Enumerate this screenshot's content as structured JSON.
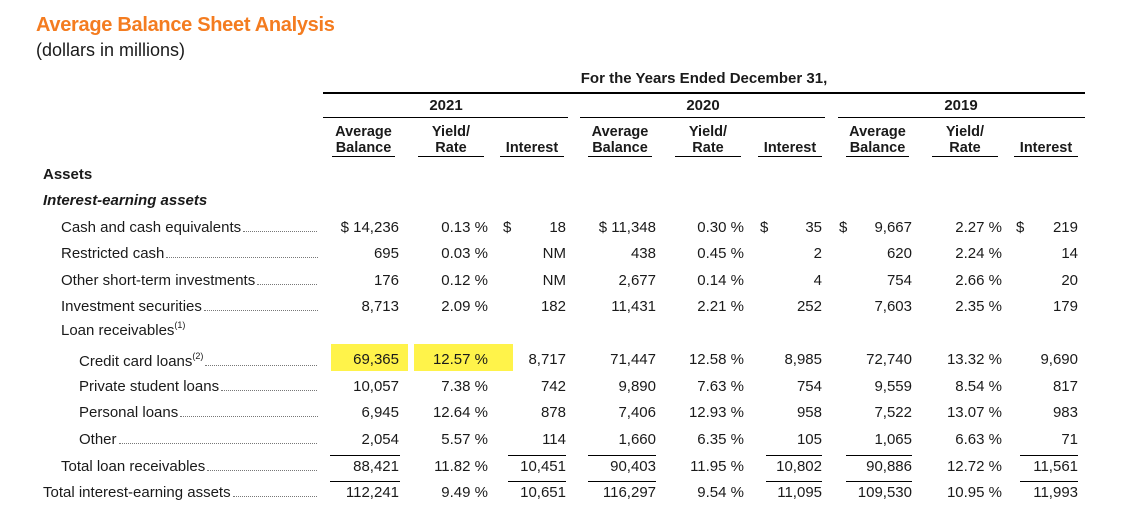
{
  "title": "Average Balance Sheet Analysis",
  "subtitle": "(dollars in millions)",
  "period_header": "For the Years Ended December 31,",
  "years": [
    "2021",
    "2020",
    "2019"
  ],
  "col_headers": {
    "avg_balance_1": "Average",
    "avg_balance_2": "Balance",
    "yield_1": "Yield/",
    "yield_2": "Rate",
    "interest": "Interest"
  },
  "sections": {
    "assets": "Assets",
    "iea": "Interest-earning assets"
  },
  "rows": [
    {
      "label": "Cash and cash equivalents",
      "sup": "",
      "indent": 1,
      "v": [
        "$ 14,236",
        "0.13 %",
        "$",
        "18",
        "$ 11,348",
        "0.30 %",
        "$",
        "35",
        "$",
        "9,667",
        "2.27 %",
        "$",
        "219"
      ]
    },
    {
      "label": "Restricted cash",
      "sup": "",
      "indent": 1,
      "v": [
        "695",
        "0.03 %",
        "",
        "NM",
        "438",
        "0.45 %",
        "",
        "2",
        "",
        "620",
        "2.24 %",
        "",
        "14"
      ]
    },
    {
      "label": "Other short-term investments",
      "sup": "",
      "indent": 1,
      "v": [
        "176",
        "0.12 %",
        "",
        "NM",
        "2,677",
        "0.14 %",
        "",
        "4",
        "",
        "754",
        "2.66 %",
        "",
        "20"
      ]
    },
    {
      "label": "Investment securities",
      "sup": "",
      "indent": 1,
      "v": [
        "8,713",
        "2.09 %",
        "",
        "182",
        "11,431",
        "2.21 %",
        "",
        "252",
        "",
        "7,603",
        "2.35 %",
        "",
        "179"
      ]
    },
    {
      "label": "Loan receivables",
      "sup": "(1)",
      "indent": 1,
      "header": true,
      "v": []
    },
    {
      "label": "Credit card loans",
      "sup": "(2)",
      "indent": 2,
      "v": [
        "69,365",
        "12.57 %",
        "",
        "8,717",
        "71,447",
        "12.58 %",
        "",
        "8,985",
        "",
        "72,740",
        "13.32 %",
        "",
        "9,690"
      ]
    },
    {
      "label": "Private student loans",
      "sup": "",
      "indent": 2,
      "v": [
        "10,057",
        "7.38 %",
        "",
        "742",
        "9,890",
        "7.63 %",
        "",
        "754",
        "",
        "9,559",
        "8.54 %",
        "",
        "817"
      ]
    },
    {
      "label": "Personal loans",
      "sup": "",
      "indent": 2,
      "v": [
        "6,945",
        "12.64 %",
        "",
        "878",
        "7,406",
        "12.93 %",
        "",
        "958",
        "",
        "7,522",
        "13.07 %",
        "",
        "983"
      ]
    },
    {
      "label": "Other",
      "sup": "",
      "indent": 2,
      "v": [
        "2,054",
        "5.57 %",
        "",
        "114",
        "1,660",
        "6.35 %",
        "",
        "105",
        "",
        "1,065",
        "6.63 %",
        "",
        "71"
      ]
    },
    {
      "label": "Total loan receivables",
      "sup": "",
      "indent": 1,
      "v": [
        "88,421",
        "11.82 %",
        "",
        "10,451",
        "90,403",
        "11.95 %",
        "",
        "10,802",
        "",
        "90,886",
        "12.72 %",
        "",
        "11,561"
      ]
    },
    {
      "label": "Total interest-earning assets",
      "sup": "",
      "indent": 0,
      "v": [
        "112,241",
        "9.49 %",
        "",
        "10,651",
        "116,297",
        "9.54 %",
        "",
        "11,095",
        "",
        "109,530",
        "10.95 %",
        "",
        "11,993"
      ]
    }
  ],
  "highlight_color": "#fff34a",
  "accent_color": "#f47c20"
}
